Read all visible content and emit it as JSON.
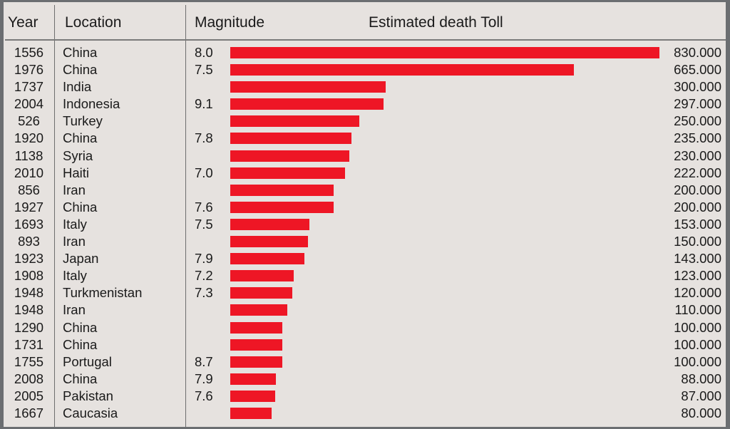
{
  "header": {
    "year": "Year",
    "location": "Location",
    "magnitude": "Magnitude",
    "death_toll": "Estimated death Toll"
  },
  "colors": {
    "bar": "#ee1625",
    "background": "#e6e2df",
    "frame": "#6b6e71"
  },
  "rows": [
    {
      "year": "1556",
      "location": "China",
      "magnitude": "8.0",
      "toll": "830.000",
      "value": 830000
    },
    {
      "year": "1976",
      "location": "China",
      "magnitude": "7.5",
      "toll": "665.000",
      "value": 665000
    },
    {
      "year": "1737",
      "location": "India",
      "magnitude": "",
      "toll": "300.000",
      "value": 300000
    },
    {
      "year": "2004",
      "location": "Indonesia",
      "magnitude": "9.1",
      "toll": "297.000",
      "value": 297000
    },
    {
      "year": "526",
      "location": "Turkey",
      "magnitude": "",
      "toll": "250.000",
      "value": 250000
    },
    {
      "year": "1920",
      "location": "China",
      "magnitude": "7.8",
      "toll": "235.000",
      "value": 235000
    },
    {
      "year": "1138",
      "location": "Syria",
      "magnitude": "",
      "toll": "230.000",
      "value": 230000
    },
    {
      "year": "2010",
      "location": "Haiti",
      "magnitude": "7.0",
      "toll": "222.000",
      "value": 222000
    },
    {
      "year": "856",
      "location": "Iran",
      "magnitude": "",
      "toll": "200.000",
      "value": 200000
    },
    {
      "year": "1927",
      "location": "China",
      "magnitude": "7.6",
      "toll": "200.000",
      "value": 200000
    },
    {
      "year": "1693",
      "location": "Italy",
      "magnitude": "7.5",
      "toll": "153.000",
      "value": 153000
    },
    {
      "year": "893",
      "location": "Iran",
      "magnitude": "",
      "toll": "150.000",
      "value": 150000
    },
    {
      "year": "1923",
      "location": "Japan",
      "magnitude": "7.9",
      "toll": "143.000",
      "value": 143000
    },
    {
      "year": "1908",
      "location": "Italy",
      "magnitude": "7.2",
      "toll": "123.000",
      "value": 123000
    },
    {
      "year": "1948",
      "location": "Turkmenistan",
      "magnitude": "7.3",
      "toll": "120.000",
      "value": 120000
    },
    {
      "year": "1948",
      "location": "Iran",
      "magnitude": "",
      "toll": "110.000",
      "value": 110000
    },
    {
      "year": "1290",
      "location": "China",
      "magnitude": "",
      "toll": "100.000",
      "value": 100000
    },
    {
      "year": "1731",
      "location": "China",
      "magnitude": "",
      "toll": "100.000",
      "value": 100000
    },
    {
      "year": "1755",
      "location": "Portugal",
      "magnitude": "8.7",
      "toll": "100.000",
      "value": 100000
    },
    {
      "year": "2008",
      "location": "China",
      "magnitude": "7.9",
      "toll": "88.000",
      "value": 88000
    },
    {
      "year": "2005",
      "location": "Pakistan",
      "magnitude": "7.6",
      "toll": "87.000",
      "value": 87000
    },
    {
      "year": "1667",
      "location": "Caucasia",
      "magnitude": "",
      "toll": "80.000",
      "value": 80000
    }
  ],
  "chart_data": {
    "type": "bar",
    "orientation": "horizontal",
    "title": "",
    "xlabel": "Estimated death Toll",
    "ylabel": "",
    "columns": [
      "Year",
      "Location",
      "Magnitude",
      "Estimated death Toll"
    ],
    "categories": [
      "1556 China",
      "1976 China",
      "1737 India",
      "2004 Indonesia",
      "526 Turkey",
      "1920 China",
      "1138 Syria",
      "2010 Haiti",
      "856 Iran",
      "1927 China",
      "1693 Italy",
      "893 Iran",
      "1923 Japan",
      "1908 Italy",
      "1948 Turkmenistan",
      "1948 Iran",
      "1290 China",
      "1731 China",
      "1755 Portugal",
      "2008 China",
      "2005 Pakistan",
      "1667 Caucasia"
    ],
    "values": [
      830000,
      665000,
      300000,
      297000,
      250000,
      235000,
      230000,
      222000,
      200000,
      200000,
      153000,
      150000,
      143000,
      123000,
      120000,
      110000,
      100000,
      100000,
      100000,
      88000,
      87000,
      80000
    ],
    "magnitudes": [
      "8.0",
      "7.5",
      "",
      "9.1",
      "",
      "7.8",
      "",
      "7.0",
      "",
      "7.6",
      "7.5",
      "",
      "7.9",
      "7.2",
      "7.3",
      "",
      "",
      "",
      "8.7",
      "7.9",
      "7.6",
      ""
    ],
    "xlim": [
      0,
      830000
    ],
    "grid": false,
    "legend": null,
    "bar_color": "#ee1625"
  }
}
